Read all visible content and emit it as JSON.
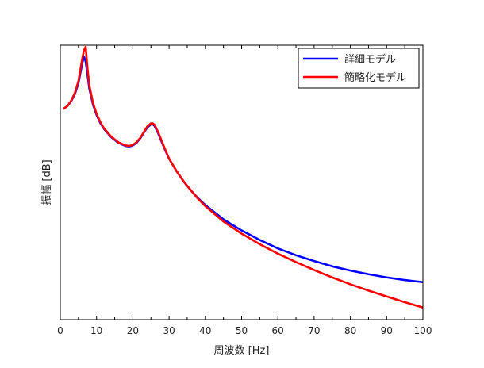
{
  "chart_data": {
    "type": "line",
    "title": "",
    "xlabel": "周波数 [Hz]",
    "ylabel": "振幅 [dB]",
    "xlim": [
      0,
      100
    ],
    "ylim": [
      -48,
      4
    ],
    "x_ticks": [
      0,
      10,
      20,
      30,
      40,
      50,
      60,
      70,
      80,
      90,
      100
    ],
    "x_tick_labels": [
      "0",
      "10",
      "20",
      "30",
      "40",
      "50",
      "60",
      "70",
      "80",
      "90",
      "100"
    ],
    "y_ticks_shown": false,
    "grid": false,
    "legend": {
      "position": "top-right"
    },
    "series": [
      {
        "name": "詳細モデル",
        "color": "#0000ff",
        "x": [
          1,
          2,
          3,
          4,
          5,
          6,
          6.5,
          7,
          7.5,
          8,
          9,
          10,
          11,
          12,
          14,
          16,
          18,
          19,
          20,
          21,
          22,
          23,
          24,
          25,
          25.5,
          26,
          27,
          28,
          29,
          30,
          32,
          34,
          36,
          38,
          40,
          45,
          50,
          55,
          60,
          65,
          70,
          75,
          80,
          85,
          90,
          95,
          100
        ],
        "y": [
          -8.0,
          -7.5,
          -6.6,
          -5.3,
          -3.2,
          0.4,
          1.9,
          0.9,
          -1.6,
          -4.2,
          -7.2,
          -9.2,
          -10.7,
          -11.8,
          -13.4,
          -14.5,
          -15.1,
          -15.2,
          -15.0,
          -14.5,
          -13.7,
          -12.6,
          -11.6,
          -11.0,
          -11.0,
          -11.3,
          -12.7,
          -14.4,
          -16.0,
          -17.5,
          -19.8,
          -21.8,
          -23.5,
          -25.0,
          -26.3,
          -29.0,
          -31.1,
          -32.9,
          -34.5,
          -35.8,
          -36.9,
          -37.9,
          -38.7,
          -39.4,
          -40.0,
          -40.5,
          -40.9
        ]
      },
      {
        "name": "簡略化モデル",
        "color": "#ff0000",
        "x": [
          1,
          2,
          3,
          4,
          5,
          6,
          6.5,
          7,
          7.5,
          8,
          9,
          10,
          11,
          12,
          14,
          16,
          18,
          19,
          20,
          21,
          22,
          23,
          24,
          25,
          25.5,
          26,
          27,
          28,
          29,
          30,
          32,
          34,
          36,
          38,
          40,
          45,
          50,
          55,
          60,
          65,
          70,
          75,
          80,
          85,
          90,
          95,
          100
        ],
        "y": [
          -8.0,
          -7.5,
          -6.5,
          -5.1,
          -2.8,
          1.2,
          3.0,
          3.7,
          -0.4,
          -3.6,
          -6.9,
          -9.0,
          -10.5,
          -11.7,
          -13.3,
          -14.4,
          -15.0,
          -15.1,
          -14.9,
          -14.4,
          -13.6,
          -12.5,
          -11.4,
          -10.8,
          -10.8,
          -11.1,
          -12.5,
          -14.2,
          -15.9,
          -17.5,
          -19.8,
          -21.8,
          -23.5,
          -25.1,
          -26.5,
          -29.4,
          -31.7,
          -33.7,
          -35.5,
          -37.1,
          -38.6,
          -40.0,
          -41.3,
          -42.5,
          -43.6,
          -44.7,
          -45.7
        ]
      }
    ]
  }
}
